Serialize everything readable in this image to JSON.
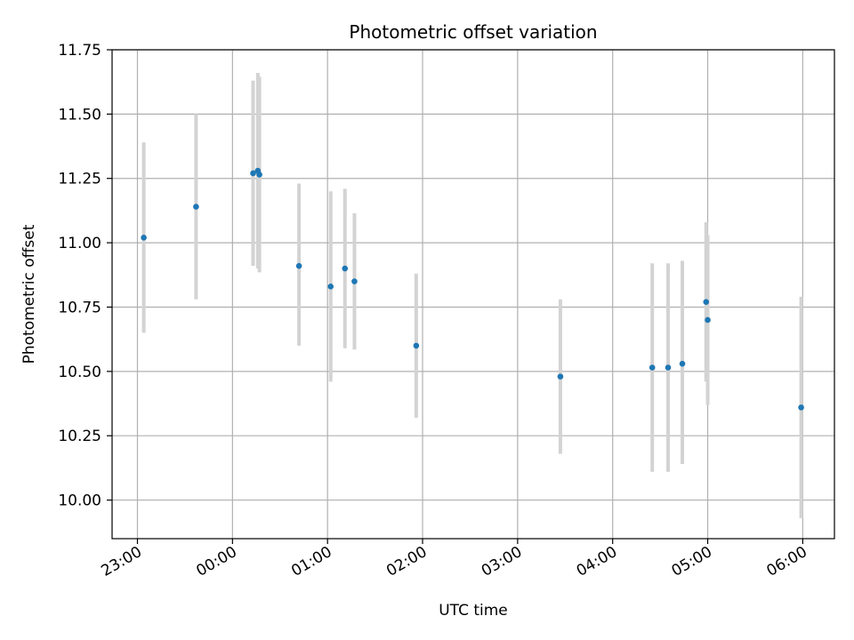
{
  "chart_data": {
    "type": "scatter",
    "title": "Photometric offset variation",
    "xlabel": "UTC time",
    "ylabel": "Photometric offset",
    "x_ticks": [
      "23:00",
      "00:00",
      "01:00",
      "02:00",
      "03:00",
      "04:00",
      "05:00",
      "06:00"
    ],
    "y_ticks": [
      "10.00",
      "10.25",
      "10.50",
      "10.75",
      "11.00",
      "11.25",
      "11.50",
      "11.75"
    ],
    "xlim": [
      "22:44",
      "06:20"
    ],
    "ylim": [
      9.85,
      11.75
    ],
    "grid": true,
    "colors": {
      "point": "#1f77b4",
      "errorbar": "#d3d3d3",
      "grid": "#b0b0b0"
    },
    "series": [
      {
        "points": [
          {
            "t": "23:04",
            "y": 11.02,
            "lo": 10.65,
            "hi": 11.39
          },
          {
            "t": "23:37",
            "y": 11.14,
            "lo": 10.78,
            "hi": 11.5
          },
          {
            "t": "00:13",
            "y": 11.27,
            "lo": 10.91,
            "hi": 11.63
          },
          {
            "t": "00:16",
            "y": 11.28,
            "lo": 10.9,
            "hi": 11.66
          },
          {
            "t": "00:17",
            "y": 11.265,
            "lo": 10.885,
            "hi": 11.645
          },
          {
            "t": "00:42",
            "y": 10.91,
            "lo": 10.6,
            "hi": 11.23
          },
          {
            "t": "01:02",
            "y": 10.83,
            "lo": 10.46,
            "hi": 11.2
          },
          {
            "t": "01:11",
            "y": 10.9,
            "lo": 10.59,
            "hi": 11.21
          },
          {
            "t": "01:17",
            "y": 10.85,
            "lo": 10.585,
            "hi": 11.115
          },
          {
            "t": "01:56",
            "y": 10.6,
            "lo": 10.32,
            "hi": 10.88
          },
          {
            "t": "03:27",
            "y": 10.48,
            "lo": 10.18,
            "hi": 10.78
          },
          {
            "t": "04:25",
            "y": 10.515,
            "lo": 10.11,
            "hi": 10.92
          },
          {
            "t": "04:35",
            "y": 10.515,
            "lo": 10.11,
            "hi": 10.92
          },
          {
            "t": "04:44",
            "y": 10.53,
            "lo": 10.14,
            "hi": 10.93
          },
          {
            "t": "04:59",
            "y": 10.77,
            "lo": 10.46,
            "hi": 11.08
          },
          {
            "t": "05:00",
            "y": 10.7,
            "lo": 10.37,
            "hi": 11.03
          },
          {
            "t": "05:59",
            "y": 10.36,
            "lo": 9.93,
            "hi": 10.79
          }
        ]
      }
    ]
  }
}
